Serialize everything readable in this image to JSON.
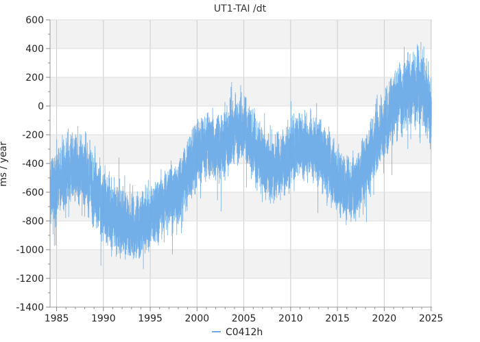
{
  "chart_data": {
    "type": "line",
    "title": "UT1-TAI /dt",
    "ylabel": "ms / year",
    "xlabel": "",
    "xlim": [
      1984.3,
      2025.1
    ],
    "ylim": [
      -1400,
      600
    ],
    "x_ticks": [
      1985,
      1990,
      1995,
      2000,
      2005,
      2010,
      2015,
      2020,
      2025
    ],
    "y_ticks": [
      -1400,
      -1200,
      -1000,
      -800,
      -600,
      -400,
      -200,
      0,
      200,
      400,
      600
    ],
    "grid": true,
    "alternating_bands": true,
    "legend_position": "bottom-center",
    "series": [
      {
        "name": "C0412h",
        "color": "#6aaae6",
        "mean_curve": [
          [
            1984.3,
            -580
          ],
          [
            1985,
            -550
          ],
          [
            1986,
            -480
          ],
          [
            1987,
            -420
          ],
          [
            1988,
            -470
          ],
          [
            1989,
            -560
          ],
          [
            1990,
            -700
          ],
          [
            1991,
            -760
          ],
          [
            1992,
            -800
          ],
          [
            1993,
            -850
          ],
          [
            1994,
            -820
          ],
          [
            1995,
            -780
          ],
          [
            1996,
            -700
          ],
          [
            1997,
            -650
          ],
          [
            1998,
            -620
          ],
          [
            1999,
            -450
          ],
          [
            2000,
            -330
          ],
          [
            2001,
            -260
          ],
          [
            2002,
            -300
          ],
          [
            2003,
            -240
          ],
          [
            2004,
            -160
          ],
          [
            2005,
            -150
          ],
          [
            2006,
            -280
          ],
          [
            2007,
            -380
          ],
          [
            2008,
            -440
          ],
          [
            2009,
            -400
          ],
          [
            2010,
            -330
          ],
          [
            2011,
            -260
          ],
          [
            2012,
            -280
          ],
          [
            2013,
            -330
          ],
          [
            2014,
            -420
          ],
          [
            2015,
            -520
          ],
          [
            2016,
            -570
          ],
          [
            2017,
            -580
          ],
          [
            2018,
            -400
          ],
          [
            2019,
            -250
          ],
          [
            2020,
            -150
          ],
          [
            2021,
            0
          ],
          [
            2022,
            80
          ],
          [
            2023,
            110
          ],
          [
            2024,
            130
          ],
          [
            2025,
            -40
          ]
        ],
        "variability": [
          [
            1984.3,
            380
          ],
          [
            1990,
            420
          ],
          [
            1995,
            360
          ],
          [
            2000,
            380
          ],
          [
            2005,
            400
          ],
          [
            2010,
            380
          ],
          [
            2015,
            380
          ],
          [
            2020,
            400
          ],
          [
            2025,
            460
          ]
        ]
      }
    ]
  }
}
